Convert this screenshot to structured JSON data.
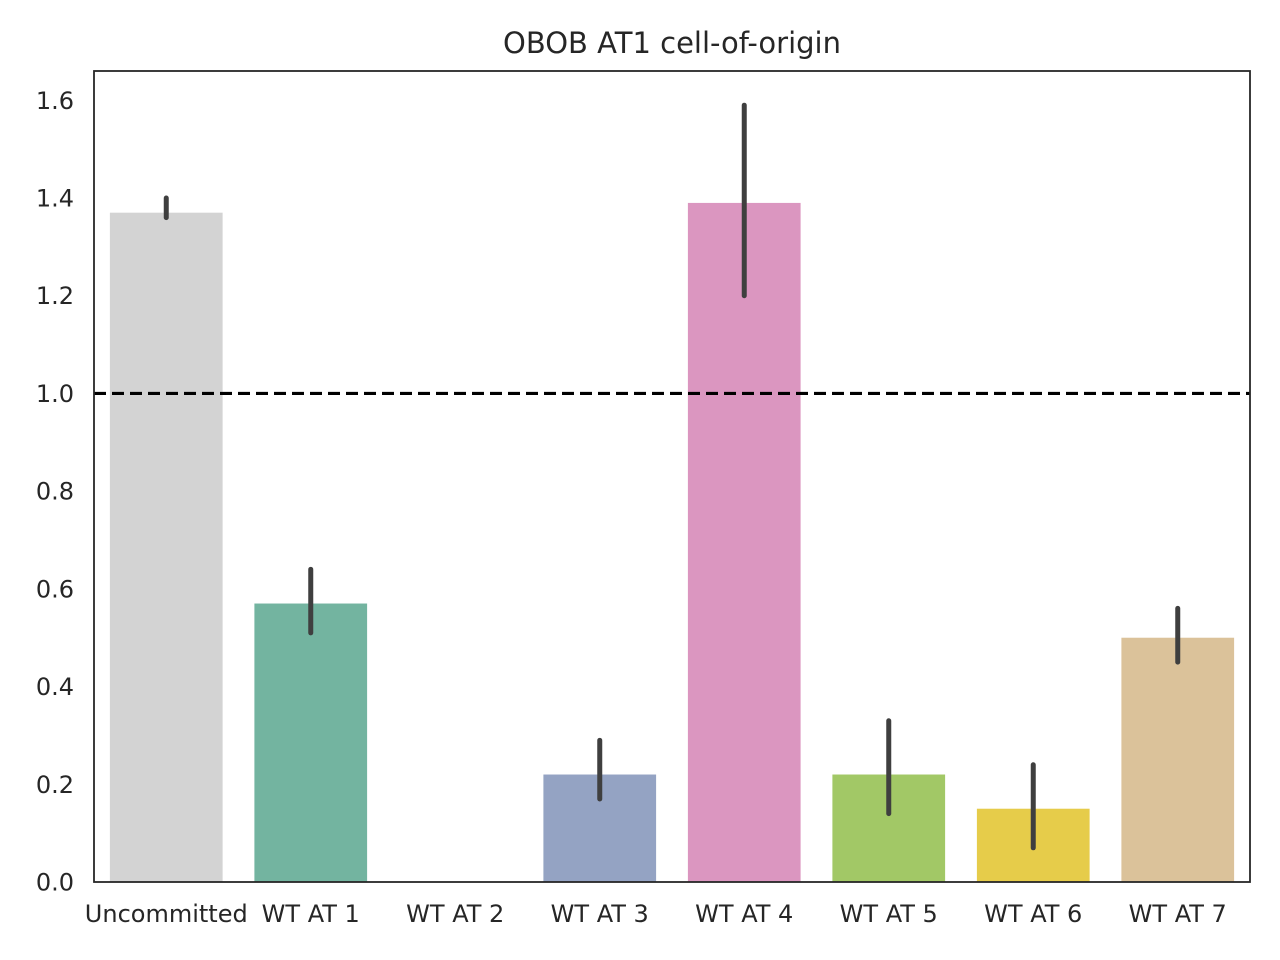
{
  "chart_data": {
    "type": "bar",
    "title": "OBOB AT1 cell-of-origin",
    "xlabel": "",
    "ylabel": "",
    "categories": [
      "Uncommitted",
      "WT AT 1",
      "WT AT 2",
      "WT AT 3",
      "WT AT 4",
      "WT AT 5",
      "WT AT 6",
      "WT AT 7"
    ],
    "values": [
      1.37,
      0.57,
      0.0,
      0.22,
      1.39,
      0.22,
      0.15,
      0.5
    ],
    "error_low": [
      1.36,
      0.51,
      null,
      0.17,
      1.2,
      0.14,
      0.07,
      0.45
    ],
    "error_high": [
      1.4,
      0.64,
      null,
      0.29,
      1.59,
      0.33,
      0.24,
      0.56
    ],
    "colors": [
      "#d3d3d3",
      "#73b4a0",
      "#fc8d62",
      "#94a3c3",
      "#db96c0",
      "#a2c866",
      "#e6cc4a",
      "#dbc29a"
    ],
    "ylim": [
      0,
      1.66
    ],
    "yticks": [
      "0.0",
      "0.2",
      "0.4",
      "0.6",
      "0.8",
      "1.0",
      "1.2",
      "1.4",
      "1.6"
    ],
    "reference_line": {
      "y": 1.0,
      "style": "dashed",
      "color": "#000000"
    },
    "grid": false,
    "error_bar_color": "#3f3f3f"
  }
}
